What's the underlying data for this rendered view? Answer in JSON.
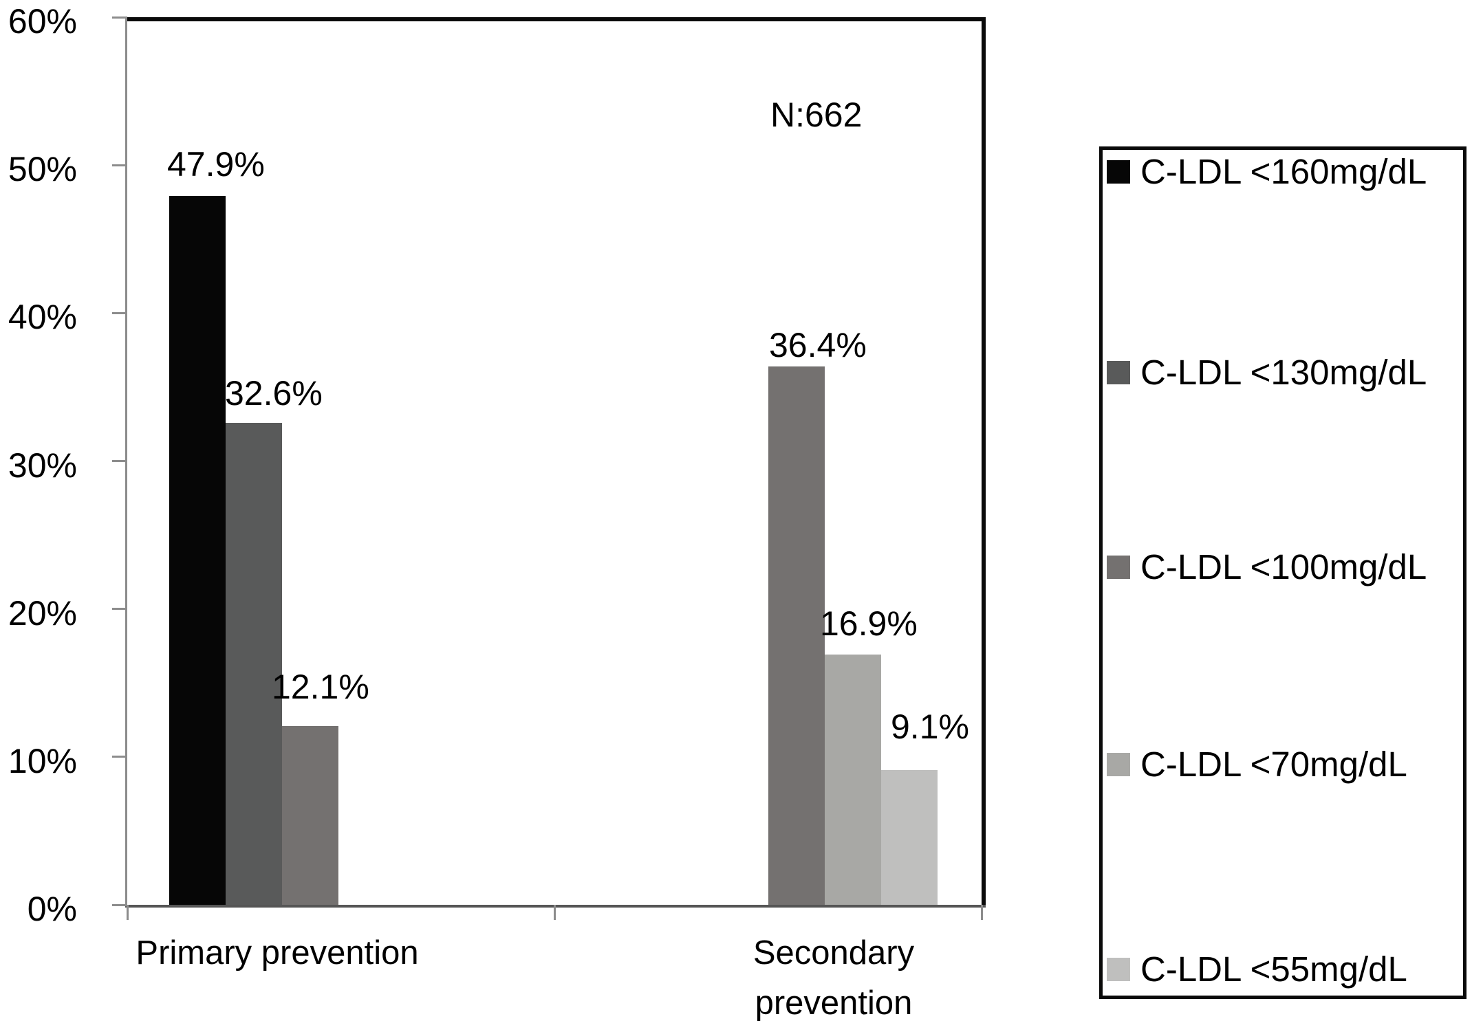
{
  "chart_data": {
    "type": "bar",
    "title": "",
    "annotation": "N:662",
    "categories": [
      "Primary prevention",
      "Secondary\nprevention"
    ],
    "y_axis": {
      "min": 0,
      "max": 60,
      "tick_step": 10,
      "tick_labels": [
        "0%",
        "10%",
        "20%",
        "30%",
        "40%",
        "50%",
        "60%"
      ],
      "format": "percent"
    },
    "grid": "off",
    "legend_position": "right",
    "series": [
      {
        "name": "C-LDL <160mg/dL",
        "color": "#060606",
        "values": [
          47.9,
          null
        ]
      },
      {
        "name": "C-LDL <130mg/dL",
        "color": "#595a5a",
        "values": [
          32.6,
          null
        ]
      },
      {
        "name": "C-LDL <100mg/dL",
        "color": "#747170",
        "values": [
          12.1,
          36.4
        ]
      },
      {
        "name": "C-LDL <70mg/dL",
        "color": "#a8a8a5",
        "values": [
          null,
          16.9
        ]
      },
      {
        "name": "C-LDL <55mg/dL",
        "color": "#bfbfbe",
        "values": [
          null,
          9.1
        ]
      }
    ],
    "data_labels": [
      "47.9%",
      "32.6%",
      "12.1%",
      "36.4%",
      "16.9%",
      "9.1%"
    ]
  }
}
